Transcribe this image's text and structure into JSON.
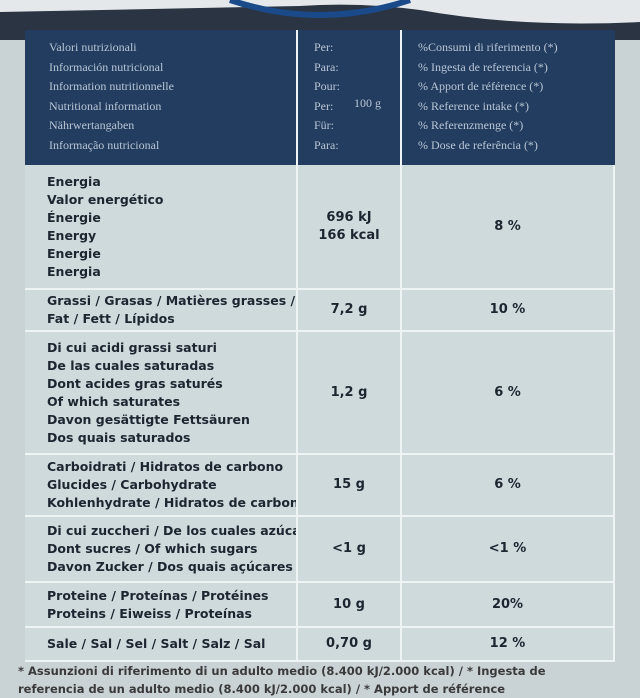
{
  "header": {
    "label_lines": [
      "Valori nutrizionali",
      "Información nutricional",
      "Information nutritionnelle",
      "Nutritional information",
      "Nährwertangaben",
      "Informação nutricional"
    ],
    "per_lines": [
      "Per:",
      "Para:",
      "Pour:",
      "Per:",
      "Für:",
      "Para:"
    ],
    "amount": "100 g",
    "ri_lines": [
      "%Consumi di riferimento (*)",
      "% Ingesta de referencia (*)",
      "% Apport de référence (*)",
      "% Reference intake (*)",
      "% Referenzmenge (*)",
      "% Dose de referência (*)"
    ]
  },
  "rows": [
    {
      "labels": [
        "Energia",
        "Valor energético",
        "Énergie",
        "Energy",
        "Energie",
        "Energia"
      ],
      "values": [
        "696 kJ",
        "166 kcal"
      ],
      "ri": "8 %"
    },
    {
      "labels": [
        "Grassi / Grasas / Matières grasses /",
        "Fat / Fett / Lípidos"
      ],
      "values": [
        "7,2 g"
      ],
      "ri": "10 %"
    },
    {
      "labels": [
        "Di cui acidi grassi saturi",
        "De las cuales saturadas",
        "Dont acides gras saturés",
        "Of which saturates",
        "Davon gesättigte Fettsäuren",
        "Dos quais saturados"
      ],
      "values": [
        "1,2 g"
      ],
      "ri": "6 %"
    },
    {
      "labels": [
        "Carboidrati / Hidratos de carbono",
        "Glucides / Carbohydrate",
        "Kohlenhydrate / Hidratos de carbono"
      ],
      "values": [
        "15 g"
      ],
      "ri": "6 %"
    },
    {
      "labels": [
        "Di cui zuccheri / De los cuales azúcares",
        "Dont sucres / Of which sugars",
        "Davon Zucker / Dos quais açúcares"
      ],
      "values": [
        "<1 g"
      ],
      "ri": "<1 %"
    },
    {
      "labels": [
        "Proteine / Proteínas / Protéines",
        "Proteins / Eiweiss / Proteínas"
      ],
      "values": [
        "10 g"
      ],
      "ri": "20%"
    },
    {
      "labels": [
        "Sale / Sal / Sel / Salt / Salz / Sal"
      ],
      "values": [
        "0,70 g"
      ],
      "ri": "12 %"
    }
  ],
  "footnote": [
    "* Assunzioni di riferimento di un adulto medio (8.400 kJ/2.000 kcal) / * Ingesta de",
    "referencia de un adulto medio (8.400 kJ/2.000 kcal) / * Apport de référence"
  ]
}
